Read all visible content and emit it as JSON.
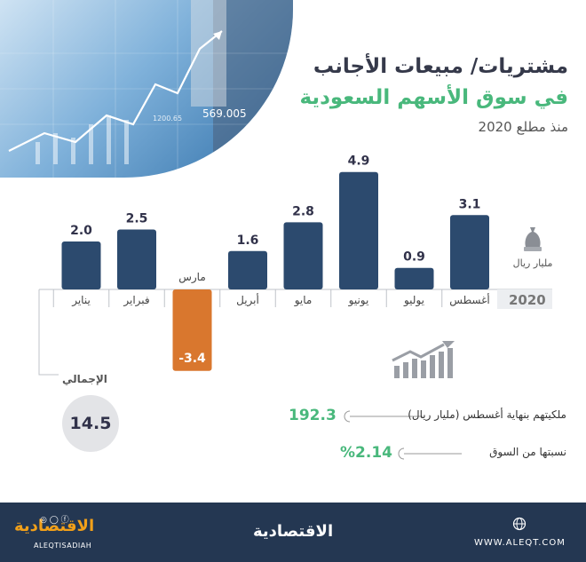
{
  "header": {
    "title_line1": "مشتريات/ مبيعات الأجانب",
    "title_line2": "في سوق الأسهم السعودية",
    "subtitle": "منذ مطلع 2020"
  },
  "hero": {
    "ticker_1": "569.005",
    "ticker_2": "1200.65"
  },
  "chart_data": {
    "type": "bar",
    "categories": [
      "يناير",
      "فبراير",
      "مارس",
      "أبريل",
      "مايو",
      "يونيو",
      "يوليو",
      "أغسطس"
    ],
    "values": [
      2.0,
      2.5,
      -3.4,
      1.6,
      2.8,
      4.9,
      0.9,
      3.1
    ],
    "value_labels": [
      "2.0",
      "2.5",
      "-3.4",
      "1.6",
      "2.8",
      "4.9",
      "0.9",
      "3.1"
    ],
    "colors": {
      "positive": "#2c4a6e",
      "negative": "#d9772e",
      "axis": "#bfc3c8"
    },
    "unit": "مليار ريال",
    "year": "2020",
    "total_label": "الإجمالي",
    "total_value": "14.5"
  },
  "stats": {
    "ownership_label": "ملكيتهم بنهاية أغسطس (مليار ريال)",
    "ownership_value": "192.3",
    "share_label": "نسبتها من السوق",
    "share_value": "%2.14"
  },
  "footer": {
    "brand": "الاقتصادية",
    "handle": "ALEQTISADIAH",
    "social": "◎ ◯ ⓕ",
    "url": "WWW.ALEQT.COM"
  },
  "colors": {
    "accent_green": "#49b87c",
    "navy": "#243752",
    "orange": "#d9772e"
  }
}
